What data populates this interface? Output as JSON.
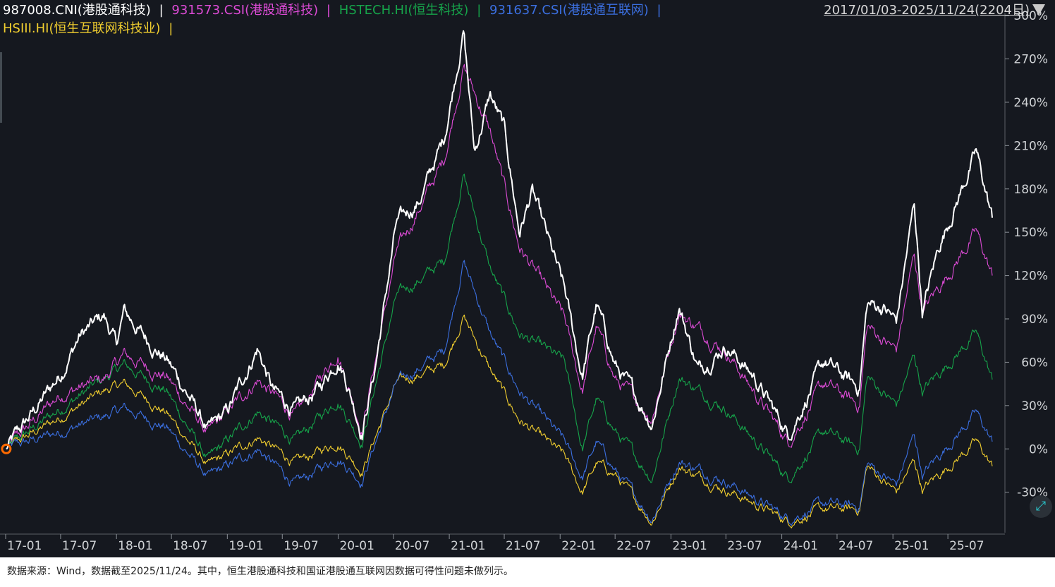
{
  "legend": [
    {
      "text": "987008.CNI(港股通科技)",
      "color": "#ffffff"
    },
    {
      "text": "931573.CSI(港股通科技)",
      "color": "#dd4bd6"
    },
    {
      "text": "HSTECH.HI(恒生科技)",
      "color": "#16a34a"
    },
    {
      "text": "931637.CSI(港股通互联网)",
      "color": "#3b6fe0"
    },
    {
      "text": "HSIII.HI(恒生互联网科技业)",
      "color": "#f2cf2f"
    }
  ],
  "separator": "|",
  "date_range": "2017/01/03-2025/11/24(2204日)",
  "footnote": "数据来源：Wind，数据截至2025/11/24。其中，恒生港股通科技和国证港股通互联网因数据可得性问题未做列示。",
  "chart_data": {
    "type": "line",
    "x_ticks": [
      "17-01",
      "17-07",
      "18-01",
      "18-07",
      "19-01",
      "19-07",
      "20-01",
      "20-07",
      "21-01",
      "21-07",
      "22-01",
      "22-07",
      "23-01",
      "23-07",
      "24-01",
      "24-07",
      "25-01",
      "25-07"
    ],
    "y_ticks": [
      "300%",
      "270%",
      "240%",
      "210%",
      "180%",
      "150%",
      "120%",
      "90%",
      "60%",
      "30%",
      "0%",
      "-30%"
    ],
    "ylim": [
      -58,
      302
    ],
    "xlim": [
      "2017-01-01",
      "2025-12-01"
    ],
    "grid": false,
    "series": [
      {
        "name": "987008.CNI(港股通科技)",
        "color": "#ffffff",
        "x": [
          "2017-01-03",
          "2017-04-01",
          "2017-07-01",
          "2017-09-01",
          "2017-11-20",
          "2018-01-01",
          "2018-01-26",
          "2018-04-01",
          "2018-06-15",
          "2018-09-01",
          "2018-10-30",
          "2019-01-03",
          "2019-04-10",
          "2019-06-01",
          "2019-08-15",
          "2019-11-01",
          "2019-12-31",
          "2020-01-20",
          "2020-03-19",
          "2020-05-01",
          "2020-07-10",
          "2020-09-25",
          "2020-12-15",
          "2021-02-17",
          "2021-03-25",
          "2021-05-15",
          "2021-06-30",
          "2021-08-20",
          "2021-10-01",
          "2022-01-15",
          "2022-03-15",
          "2022-05-01",
          "2022-07-01",
          "2022-10-31",
          "2023-01-27",
          "2023-04-01",
          "2023-07-01",
          "2023-10-01",
          "2024-01-22",
          "2024-05-20",
          "2024-09-12",
          "2024-10-08",
          "2024-12-01",
          "2025-01-13",
          "2025-03-12",
          "2025-04-08",
          "2025-06-01",
          "2025-10-02",
          "2025-11-24"
        ],
        "values": [
          0,
          25,
          52,
          78,
          92,
          72,
          95,
          78,
          62,
          35,
          12,
          26,
          70,
          40,
          26,
          42,
          63,
          54,
          12,
          55,
          155,
          172,
          215,
          290,
          205,
          245,
          222,
          150,
          178,
          110,
          50,
          100,
          58,
          18,
          100,
          55,
          72,
          50,
          10,
          60,
          42,
          100,
          98,
          88,
          170,
          95,
          140,
          205,
          160
        ]
      },
      {
        "name": "931573.CSI(港股通科技)",
        "color": "#dd4bd6",
        "x": [
          "2017-01-03",
          "2017-07-01",
          "2017-11-20",
          "2018-01-26",
          "2018-06-15",
          "2018-10-30",
          "2019-04-10",
          "2019-08-15",
          "2019-12-31",
          "2020-03-19",
          "2020-07-10",
          "2020-12-15",
          "2021-02-17",
          "2021-05-15",
          "2021-08-20",
          "2022-01-15",
          "2022-03-15",
          "2022-05-01",
          "2022-07-01",
          "2022-10-31",
          "2023-01-27",
          "2023-07-01",
          "2024-01-22",
          "2024-05-20",
          "2024-09-12",
          "2024-10-08",
          "2025-01-13",
          "2025-03-12",
          "2025-04-08",
          "2025-10-02",
          "2025-11-24"
        ],
        "values": [
          0,
          38,
          48,
          65,
          50,
          10,
          48,
          22,
          68,
          14,
          135,
          200,
          265,
          220,
          140,
          90,
          40,
          85,
          48,
          22,
          95,
          68,
          5,
          45,
          30,
          85,
          68,
          135,
          95,
          150,
          120
        ]
      },
      {
        "name": "HSTECH.HI(恒生科技)",
        "color": "#16a34a",
        "x": [
          "2017-01-03",
          "2017-07-01",
          "2017-11-20",
          "2018-01-26",
          "2018-06-15",
          "2018-10-30",
          "2019-04-10",
          "2019-08-15",
          "2019-12-31",
          "2020-03-19",
          "2020-07-10",
          "2020-12-15",
          "2021-02-17",
          "2021-05-15",
          "2021-08-20",
          "2022-01-15",
          "2022-03-15",
          "2022-05-01",
          "2022-07-01",
          "2022-10-31",
          "2023-01-27",
          "2023-07-01",
          "2024-01-22",
          "2024-05-20",
          "2024-09-12",
          "2024-10-08",
          "2025-01-13",
          "2025-03-12",
          "2025-04-08",
          "2025-10-02",
          "2025-11-24"
        ],
        "values": [
          0,
          28,
          48,
          58,
          40,
          -8,
          26,
          5,
          35,
          5,
          105,
          130,
          190,
          125,
          80,
          60,
          0,
          35,
          12,
          -20,
          50,
          28,
          -20,
          12,
          0,
          50,
          30,
          65,
          40,
          80,
          48
        ]
      },
      {
        "name": "931637.CSI(港股通互联网)",
        "color": "#3b6fe0",
        "x": [
          "2017-01-03",
          "2017-07-01",
          "2017-11-20",
          "2018-01-26",
          "2018-06-15",
          "2018-10-30",
          "2019-04-10",
          "2019-08-15",
          "2019-12-31",
          "2020-03-19",
          "2020-07-10",
          "2020-12-15",
          "2021-02-17",
          "2021-05-15",
          "2021-08-20",
          "2022-01-15",
          "2022-03-15",
          "2022-05-01",
          "2022-07-01",
          "2022-10-31",
          "2023-01-27",
          "2023-07-01",
          "2024-01-22",
          "2024-05-20",
          "2024-09-12",
          "2024-10-08",
          "2025-01-13",
          "2025-03-12",
          "2025-04-08",
          "2025-10-02",
          "2025-11-24"
        ],
        "values": [
          0,
          12,
          22,
          28,
          15,
          -20,
          0,
          -25,
          -5,
          -22,
          45,
          68,
          130,
          80,
          40,
          5,
          -20,
          5,
          -15,
          -48,
          -8,
          -22,
          -48,
          -38,
          -40,
          -10,
          -25,
          10,
          -18,
          25,
          5
        ]
      },
      {
        "name": "HSIII.HI(恒生互联网科技业)",
        "color": "#f2cf2f",
        "x": [
          "2017-01-03",
          "2017-07-01",
          "2017-11-20",
          "2018-01-26",
          "2018-06-15",
          "2018-10-30",
          "2019-04-10",
          "2019-08-15",
          "2019-12-31",
          "2020-03-19",
          "2020-07-10",
          "2020-12-15",
          "2021-02-17",
          "2021-05-15",
          "2021-08-20",
          "2022-01-15",
          "2022-03-15",
          "2022-05-01",
          "2022-07-01",
          "2022-10-31",
          "2023-01-27",
          "2023-07-01",
          "2024-01-22",
          "2024-05-20",
          "2024-09-12",
          "2024-10-08",
          "2025-01-13",
          "2025-03-12",
          "2025-04-08",
          "2025-10-02",
          "2025-11-24"
        ],
        "values": [
          0,
          22,
          40,
          45,
          25,
          -12,
          8,
          -10,
          5,
          -15,
          45,
          58,
          92,
          55,
          20,
          -5,
          -30,
          -10,
          -18,
          -50,
          -12,
          -28,
          -50,
          -42,
          -42,
          -12,
          -30,
          -8,
          -28,
          5,
          -12
        ]
      }
    ]
  }
}
